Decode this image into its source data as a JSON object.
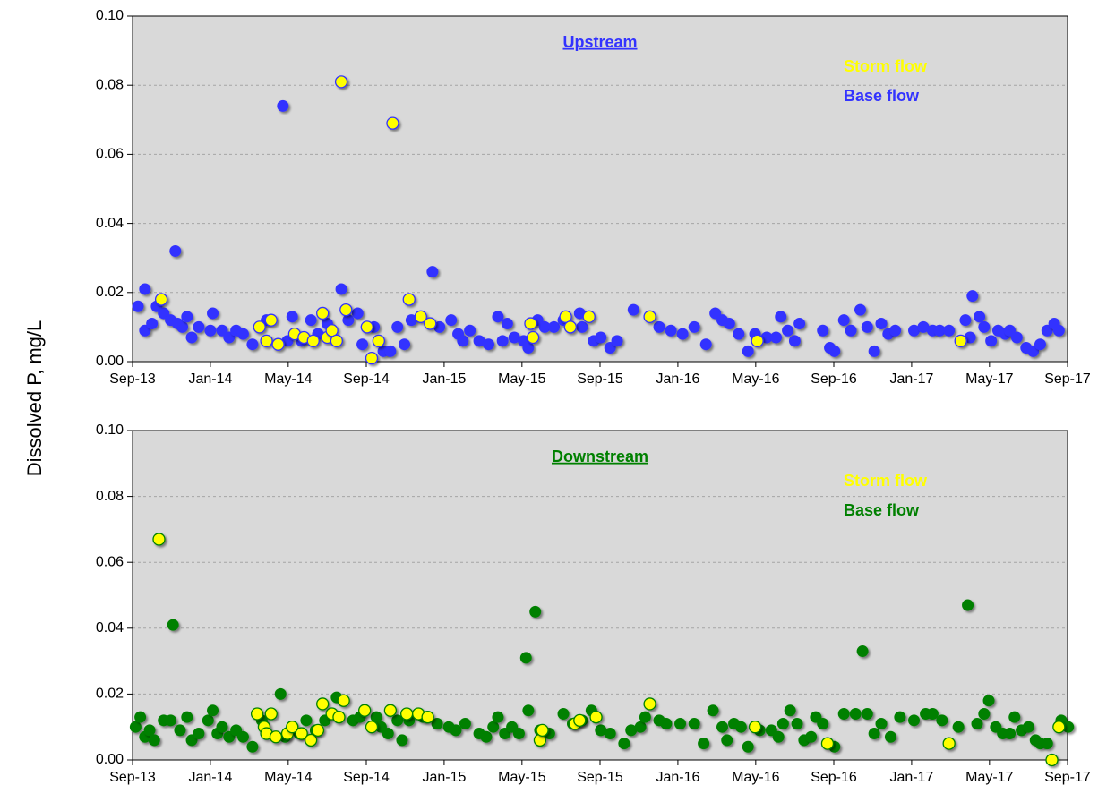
{
  "chart_data": [
    {
      "type": "scatter",
      "title": "Upstream",
      "title_color": "#3333ff",
      "ylabel": "Dissolved P, mg/L",
      "xlim": [
        2013.667,
        2017.667
      ],
      "xticks": [
        {
          "value": 2013.667,
          "label": "Sep-13"
        },
        {
          "value": 2014,
          "label": "Jan-14"
        },
        {
          "value": 2014.333,
          "label": "May-14"
        },
        {
          "value": 2014.667,
          "label": "Sep-14"
        },
        {
          "value": 2015,
          "label": "Jan-15"
        },
        {
          "value": 2015.333,
          "label": "May-15"
        },
        {
          "value": 2015.667,
          "label": "Sep-15"
        },
        {
          "value": 2016,
          "label": "Jan-16"
        },
        {
          "value": 2016.333,
          "label": "May-16"
        },
        {
          "value": 2016.667,
          "label": "Sep-16"
        },
        {
          "value": 2017,
          "label": "Jan-17"
        },
        {
          "value": 2017.333,
          "label": "May-17"
        },
        {
          "value": 2017.667,
          "label": "Sep-17"
        }
      ],
      "ylim": [
        0,
        0.1
      ],
      "yticks": [
        {
          "value": 0,
          "label": "0.00"
        },
        {
          "value": 0.02,
          "label": "0.02"
        },
        {
          "value": 0.04,
          "label": "0.04"
        },
        {
          "value": 0.06,
          "label": "0.06"
        },
        {
          "value": 0.08,
          "label": "0.08"
        },
        {
          "value": 0.1,
          "label": "0.10"
        }
      ],
      "grid": true,
      "legend": "upper right",
      "series": [
        {
          "name": "Storm flow",
          "color": "#ffff00",
          "x": [
            2013.79,
            2014.21,
            2014.24,
            2014.26,
            2014.29,
            2014.36,
            2014.4,
            2014.44,
            2014.48,
            2014.5,
            2014.52,
            2014.54,
            2014.56,
            2014.58,
            2014.67,
            2014.69,
            2014.72,
            2014.78,
            2014.85,
            2014.9,
            2014.94,
            2015.37,
            2015.38,
            2015.52,
            2015.54,
            2015.62,
            2015.88,
            2016.34,
            2017.21
          ],
          "values": [
            0.018,
            0.01,
            0.006,
            0.012,
            0.005,
            0.008,
            0.007,
            0.006,
            0.014,
            0.007,
            0.009,
            0.006,
            0.081,
            0.015,
            0.01,
            0.001,
            0.006,
            0.069,
            0.018,
            0.013,
            0.011,
            0.011,
            0.007,
            0.013,
            0.01,
            0.013,
            0.013,
            0.006,
            0.006
          ]
        },
        {
          "name": "Base flow",
          "color": "#3333ff",
          "x": [
            2013.69,
            2013.72,
            2013.72,
            2013.75,
            2013.77,
            2013.8,
            2013.83,
            2013.85,
            2013.86,
            2013.88,
            2013.9,
            2013.92,
            2013.95,
            2014.0,
            2014.01,
            2014.05,
            2014.08,
            2014.11,
            2014.14,
            2014.18,
            2014.24,
            2014.31,
            2014.33,
            2014.35,
            2014.39,
            2014.43,
            2014.46,
            2014.5,
            2014.56,
            2014.59,
            2014.63,
            2014.65,
            2014.7,
            2014.74,
            2014.77,
            2014.8,
            2014.83,
            2014.86,
            2014.95,
            2014.98,
            2015.03,
            2015.06,
            2015.08,
            2015.11,
            2015.15,
            2015.19,
            2015.23,
            2015.25,
            2015.27,
            2015.3,
            2015.34,
            2015.36,
            2015.4,
            2015.43,
            2015.47,
            2015.51,
            2015.58,
            2015.59,
            2015.64,
            2015.67,
            2015.71,
            2015.74,
            2015.81,
            2015.92,
            2015.97,
            2016.02,
            2016.07,
            2016.12,
            2016.16,
            2016.19,
            2016.22,
            2016.26,
            2016.3,
            2016.33,
            2016.38,
            2016.42,
            2016.44,
            2016.47,
            2016.5,
            2016.52,
            2016.62,
            2016.65,
            2016.67,
            2016.71,
            2016.74,
            2016.78,
            2016.81,
            2016.84,
            2016.87,
            2016.9,
            2016.93,
            2017.01,
            2017.05,
            2017.09,
            2017.12,
            2017.16,
            2017.23,
            2017.25,
            2017.26,
            2017.29,
            2017.31,
            2017.34,
            2017.37,
            2017.4,
            2017.42,
            2017.45,
            2017.49,
            2017.52,
            2017.55,
            2017.58,
            2017.61,
            2017.63
          ],
          "values": [
            0.016,
            0.021,
            0.009,
            0.011,
            0.016,
            0.014,
            0.012,
            0.032,
            0.011,
            0.01,
            0.013,
            0.007,
            0.01,
            0.009,
            0.014,
            0.009,
            0.007,
            0.009,
            0.008,
            0.005,
            0.012,
            0.074,
            0.006,
            0.013,
            0.006,
            0.012,
            0.008,
            0.011,
            0.021,
            0.012,
            0.014,
            0.005,
            0.01,
            0.003,
            0.003,
            0.01,
            0.005,
            0.012,
            0.026,
            0.01,
            0.012,
            0.008,
            0.006,
            0.009,
            0.006,
            0.005,
            0.013,
            0.006,
            0.011,
            0.007,
            0.006,
            0.004,
            0.012,
            0.01,
            0.01,
            0.012,
            0.014,
            0.01,
            0.006,
            0.007,
            0.004,
            0.006,
            0.015,
            0.01,
            0.009,
            0.008,
            0.01,
            0.005,
            0.014,
            0.012,
            0.011,
            0.008,
            0.003,
            0.008,
            0.007,
            0.007,
            0.013,
            0.009,
            0.006,
            0.011,
            0.009,
            0.004,
            0.003,
            0.012,
            0.009,
            0.015,
            0.01,
            0.003,
            0.011,
            0.008,
            0.009,
            0.009,
            0.01,
            0.009,
            0.009,
            0.009,
            0.012,
            0.007,
            0.019,
            0.013,
            0.01,
            0.006,
            0.009,
            0.008,
            0.009,
            0.007,
            0.004,
            0.003,
            0.005,
            0.009,
            0.011,
            0.009
          ]
        }
      ]
    },
    {
      "type": "scatter",
      "title": "Downstream",
      "title_color": "#008000",
      "xlim": [
        2013.667,
        2017.667
      ],
      "xticks": [
        {
          "value": 2013.667,
          "label": "Sep-13"
        },
        {
          "value": 2014,
          "label": "Jan-14"
        },
        {
          "value": 2014.333,
          "label": "May-14"
        },
        {
          "value": 2014.667,
          "label": "Sep-14"
        },
        {
          "value": 2015,
          "label": "Jan-15"
        },
        {
          "value": 2015.333,
          "label": "May-15"
        },
        {
          "value": 2015.667,
          "label": "Sep-15"
        },
        {
          "value": 2016,
          "label": "Jan-16"
        },
        {
          "value": 2016.333,
          "label": "May-16"
        },
        {
          "value": 2016.667,
          "label": "Sep-16"
        },
        {
          "value": 2017,
          "label": "Jan-17"
        },
        {
          "value": 2017.333,
          "label": "May-17"
        },
        {
          "value": 2017.667,
          "label": "Sep-17"
        }
      ],
      "ylim": [
        0,
        0.1
      ],
      "yticks": [
        {
          "value": 0,
          "label": "0.00"
        },
        {
          "value": 0.02,
          "label": "0.02"
        },
        {
          "value": 0.04,
          "label": "0.04"
        },
        {
          "value": 0.06,
          "label": "0.06"
        },
        {
          "value": 0.08,
          "label": "0.08"
        },
        {
          "value": 0.1,
          "label": "0.10"
        }
      ],
      "grid": true,
      "legend": "upper right",
      "series": [
        {
          "name": "Storm flow",
          "color": "#ffff00",
          "x": [
            2013.78,
            2014.2,
            2014.23,
            2014.24,
            2014.26,
            2014.28,
            2014.33,
            2014.35,
            2014.39,
            2014.43,
            2014.46,
            2014.48,
            2014.52,
            2014.55,
            2014.57,
            2014.66,
            2014.69,
            2014.77,
            2014.84,
            2014.89,
            2014.93,
            2015.41,
            2015.42,
            2015.56,
            2015.58,
            2015.65,
            2015.88,
            2016.33,
            2016.64,
            2017.16,
            2017.6,
            2017.63
          ],
          "values": [
            0.067,
            0.014,
            0.01,
            0.008,
            0.014,
            0.007,
            0.008,
            0.01,
            0.008,
            0.006,
            0.009,
            0.017,
            0.014,
            0.013,
            0.018,
            0.015,
            0.01,
            0.015,
            0.014,
            0.014,
            0.013,
            0.006,
            0.009,
            0.011,
            0.012,
            0.013,
            0.017,
            0.01,
            0.005,
            0.005,
            0.0,
            0.01
          ]
        },
        {
          "name": "Base flow",
          "color": "#008000",
          "x": [
            2013.68,
            2013.7,
            2013.72,
            2013.74,
            2013.76,
            2013.8,
            2013.84,
            2013.83,
            2013.87,
            2013.9,
            2013.92,
            2013.95,
            2013.99,
            2014.01,
            2014.03,
            2014.05,
            2014.08,
            2014.11,
            2014.14,
            2014.18,
            2014.22,
            2014.3,
            2014.32,
            2014.38,
            2014.41,
            2014.45,
            2014.49,
            2014.54,
            2014.61,
            2014.64,
            2014.71,
            2014.73,
            2014.76,
            2014.8,
            2014.82,
            2014.85,
            2014.91,
            2014.97,
            2015.02,
            2015.05,
            2015.09,
            2015.15,
            2015.18,
            2015.21,
            2015.23,
            2015.26,
            2015.29,
            2015.32,
            2015.35,
            2015.36,
            2015.39,
            2015.41,
            2015.45,
            2015.51,
            2015.55,
            2015.59,
            2015.63,
            2015.67,
            2015.71,
            2015.77,
            2015.8,
            2015.84,
            2015.86,
            2015.92,
            2015.95,
            2016.01,
            2016.07,
            2016.11,
            2016.15,
            2016.19,
            2016.21,
            2016.24,
            2016.27,
            2016.3,
            2016.35,
            2016.4,
            2016.43,
            2016.45,
            2016.48,
            2016.51,
            2016.54,
            2016.57,
            2016.59,
            2016.62,
            2016.67,
            2016.71,
            2016.76,
            2016.79,
            2016.81,
            2016.84,
            2016.87,
            2016.91,
            2016.95,
            2017.01,
            2017.06,
            2017.09,
            2017.13,
            2017.2,
            2017.24,
            2017.28,
            2017.31,
            2017.33,
            2017.36,
            2017.39,
            2017.42,
            2017.44,
            2017.47,
            2017.5,
            2017.53,
            2017.55,
            2017.58,
            2017.64,
            2017.67
          ],
          "values": [
            0.01,
            0.013,
            0.007,
            0.009,
            0.006,
            0.012,
            0.041,
            0.012,
            0.009,
            0.013,
            0.006,
            0.008,
            0.012,
            0.015,
            0.008,
            0.01,
            0.007,
            0.009,
            0.007,
            0.004,
            0.012,
            0.02,
            0.007,
            0.008,
            0.012,
            0.009,
            0.012,
            0.019,
            0.012,
            0.013,
            0.013,
            0.01,
            0.008,
            0.012,
            0.006,
            0.012,
            0.013,
            0.011,
            0.01,
            0.009,
            0.011,
            0.008,
            0.007,
            0.01,
            0.013,
            0.008,
            0.01,
            0.008,
            0.031,
            0.015,
            0.045,
            0.009,
            0.008,
            0.014,
            0.011,
            0.012,
            0.015,
            0.009,
            0.008,
            0.005,
            0.009,
            0.01,
            0.013,
            0.012,
            0.011,
            0.011,
            0.011,
            0.005,
            0.015,
            0.01,
            0.006,
            0.011,
            0.01,
            0.004,
            0.009,
            0.009,
            0.007,
            0.011,
            0.015,
            0.011,
            0.006,
            0.007,
            0.013,
            0.011,
            0.004,
            0.014,
            0.014,
            0.033,
            0.014,
            0.008,
            0.011,
            0.007,
            0.013,
            0.012,
            0.014,
            0.014,
            0.012,
            0.01,
            0.047,
            0.011,
            0.014,
            0.018,
            0.01,
            0.008,
            0.008,
            0.013,
            0.009,
            0.01,
            0.006,
            0.005,
            0.005,
            0.012,
            0.01
          ]
        }
      ]
    }
  ]
}
